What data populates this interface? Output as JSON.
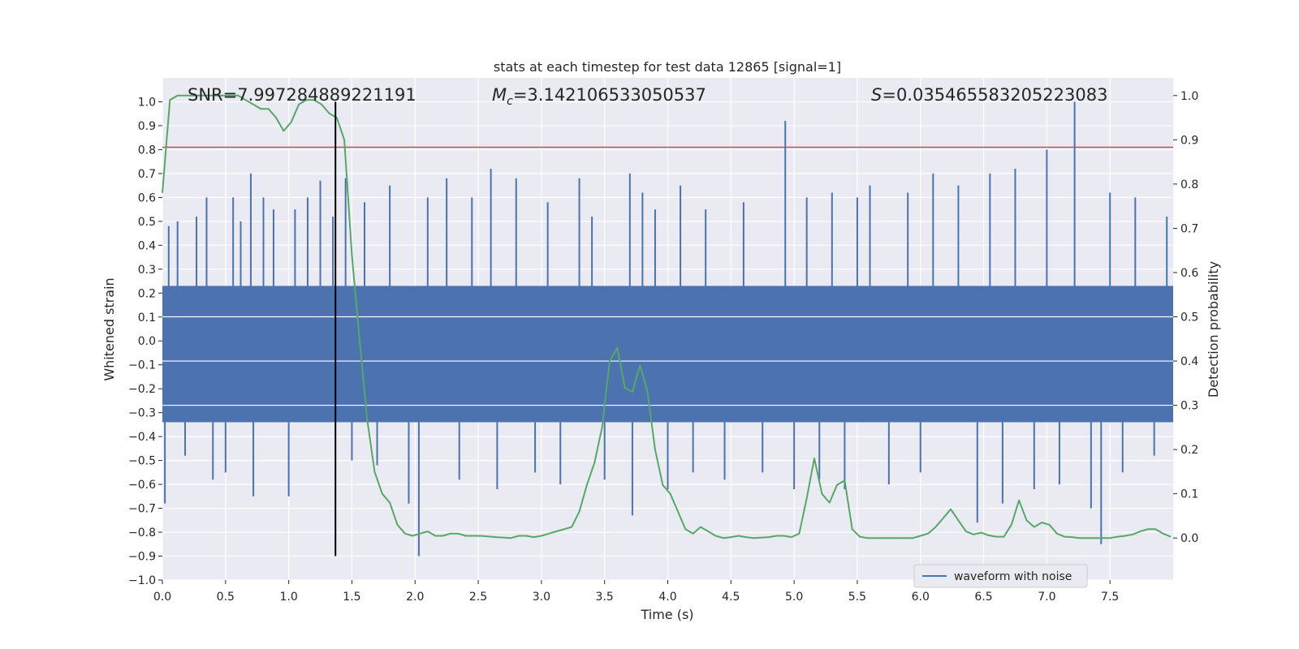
{
  "chart_data": {
    "type": "line",
    "title": "stats at each timestep for test data 12865 [signal=1]",
    "xlabel": "Time (s)",
    "ylabel": "Whitened strain",
    "y2label": "Detection probability",
    "xlim": [
      0,
      8.0
    ],
    "ylim": [
      -1.0,
      1.1
    ],
    "y2lim": [
      -0.095,
      1.04
    ],
    "xticks": [
      0.0,
      0.5,
      1.0,
      1.5,
      2.0,
      2.5,
      3.0,
      3.5,
      4.0,
      4.5,
      5.0,
      5.5,
      6.0,
      6.5,
      7.0,
      7.5
    ],
    "yticks": [
      -1.0,
      -0.9,
      -0.8,
      -0.7,
      -0.6,
      -0.5,
      -0.4,
      -0.3,
      -0.2,
      -0.1,
      0.0,
      0.1,
      0.2,
      0.3,
      0.4,
      0.5,
      0.6,
      0.7,
      0.8,
      0.9,
      1.0
    ],
    "y2ticks": [
      0.0,
      0.1,
      0.2,
      0.3,
      0.4,
      0.5,
      0.6,
      0.7,
      0.8,
      0.9,
      1.0
    ],
    "grid": true,
    "legend": {
      "placement": "bottom-right",
      "entries": [
        "waveform with noise"
      ]
    },
    "annotations": {
      "snr_text": "SNR=7.997284889221191",
      "mc_symbol": "M",
      "mc_subscript": "c",
      "mc_value": "=3.142106533050537",
      "s_symbol": "S",
      "s_value": "=0.035465583205223083"
    },
    "colors": {
      "waveform": "#4c72b0",
      "probability": "#55a868",
      "threshold": "#c44e52",
      "marker": "#000000",
      "background": "#eaeaf2"
    },
    "threshold_y": 0.81,
    "marker_x": 1.37,
    "marker_y_range": [
      -0.9,
      1.0
    ],
    "waveform": {
      "name": "waveform with noise",
      "band": [
        -0.34,
        0.23
      ],
      "spikes": [
        [
          0.02,
          -0.68
        ],
        [
          0.05,
          0.48
        ],
        [
          0.12,
          0.5
        ],
        [
          0.18,
          -0.48
        ],
        [
          0.27,
          0.52
        ],
        [
          0.35,
          0.6
        ],
        [
          0.4,
          -0.58
        ],
        [
          0.5,
          -0.55
        ],
        [
          0.56,
          0.6
        ],
        [
          0.62,
          0.5
        ],
        [
          0.7,
          0.7
        ],
        [
          0.72,
          -0.65
        ],
        [
          0.8,
          0.6
        ],
        [
          0.88,
          0.55
        ],
        [
          1.0,
          -0.65
        ],
        [
          1.05,
          0.55
        ],
        [
          1.15,
          0.6
        ],
        [
          1.25,
          0.67
        ],
        [
          1.35,
          0.52
        ],
        [
          1.45,
          0.68
        ],
        [
          1.5,
          -0.5
        ],
        [
          1.6,
          0.58
        ],
        [
          1.7,
          -0.52
        ],
        [
          1.8,
          0.65
        ],
        [
          1.95,
          -0.68
        ],
        [
          2.03,
          -0.9
        ],
        [
          2.1,
          0.6
        ],
        [
          2.25,
          0.68
        ],
        [
          2.35,
          -0.58
        ],
        [
          2.45,
          0.6
        ],
        [
          2.6,
          0.72
        ],
        [
          2.65,
          -0.62
        ],
        [
          2.8,
          0.68
        ],
        [
          2.95,
          -0.55
        ],
        [
          3.05,
          0.58
        ],
        [
          3.15,
          -0.6
        ],
        [
          3.3,
          0.68
        ],
        [
          3.4,
          0.52
        ],
        [
          3.5,
          -0.58
        ],
        [
          3.7,
          0.7
        ],
        [
          3.72,
          -0.73
        ],
        [
          3.8,
          0.62
        ],
        [
          3.9,
          0.55
        ],
        [
          4.0,
          -0.62
        ],
        [
          4.1,
          0.65
        ],
        [
          4.2,
          -0.55
        ],
        [
          4.3,
          0.55
        ],
        [
          4.45,
          -0.58
        ],
        [
          4.6,
          0.58
        ],
        [
          4.75,
          -0.55
        ],
        [
          4.93,
          0.92
        ],
        [
          5.0,
          -0.62
        ],
        [
          5.1,
          0.6
        ],
        [
          5.2,
          -0.58
        ],
        [
          5.3,
          0.62
        ],
        [
          5.4,
          -0.62
        ],
        [
          5.5,
          0.6
        ],
        [
          5.6,
          0.65
        ],
        [
          5.75,
          -0.6
        ],
        [
          5.9,
          0.62
        ],
        [
          6.0,
          -0.55
        ],
        [
          6.1,
          0.7
        ],
        [
          6.3,
          0.65
        ],
        [
          6.45,
          -0.76
        ],
        [
          6.55,
          0.7
        ],
        [
          6.65,
          -0.68
        ],
        [
          6.75,
          0.72
        ],
        [
          6.9,
          -0.62
        ],
        [
          7.0,
          0.8
        ],
        [
          7.1,
          -0.6
        ],
        [
          7.22,
          1.0
        ],
        [
          7.35,
          -0.7
        ],
        [
          7.43,
          -0.85
        ],
        [
          7.5,
          0.62
        ],
        [
          7.6,
          -0.55
        ],
        [
          7.7,
          0.6
        ],
        [
          7.85,
          -0.48
        ],
        [
          7.95,
          0.52
        ]
      ]
    },
    "probability": {
      "name": "detection probability",
      "x": [
        0.0,
        0.06,
        0.12,
        0.3,
        0.6,
        0.66,
        0.78,
        0.84,
        0.9,
        0.96,
        1.02,
        1.08,
        1.14,
        1.2,
        1.26,
        1.32,
        1.38,
        1.44,
        1.5,
        1.56,
        1.62,
        1.68,
        1.74,
        1.8,
        1.86,
        1.92,
        1.98,
        2.04,
        2.1,
        2.16,
        2.22,
        2.28,
        2.34,
        2.4,
        2.46,
        2.52,
        2.64,
        2.76,
        2.82,
        2.88,
        2.94,
        3.0,
        3.06,
        3.12,
        3.18,
        3.24,
        3.3,
        3.36,
        3.42,
        3.48,
        3.54,
        3.6,
        3.66,
        3.72,
        3.78,
        3.84,
        3.9,
        3.96,
        4.02,
        4.08,
        4.14,
        4.2,
        4.26,
        4.32,
        4.38,
        4.44,
        4.5,
        4.56,
        4.62,
        4.68,
        4.8,
        4.86,
        4.92,
        4.98,
        5.04,
        5.1,
        5.16,
        5.22,
        5.28,
        5.34,
        5.4,
        5.46,
        5.52,
        5.58,
        5.64,
        5.7,
        5.76,
        5.94,
        6.0,
        6.06,
        6.12,
        6.18,
        6.24,
        6.3,
        6.36,
        6.42,
        6.48,
        6.54,
        6.6,
        6.66,
        6.72,
        6.78,
        6.84,
        6.9,
        6.96,
        7.02,
        7.08,
        7.14,
        7.2,
        7.26,
        7.5,
        7.56,
        7.62,
        7.68,
        7.74,
        7.8,
        7.86,
        7.92,
        7.98
      ],
      "y": [
        0.78,
        0.99,
        1.0,
        1.0,
        1.0,
        0.99,
        0.97,
        0.97,
        0.95,
        0.92,
        0.94,
        0.98,
        0.99,
        0.99,
        0.98,
        0.96,
        0.95,
        0.9,
        0.64,
        0.45,
        0.27,
        0.15,
        0.1,
        0.08,
        0.03,
        0.01,
        0.005,
        0.01,
        0.015,
        0.005,
        0.005,
        0.01,
        0.01,
        0.005,
        0.005,
        0.005,
        0.002,
        0.0,
        0.005,
        0.005,
        0.002,
        0.005,
        0.01,
        0.015,
        0.02,
        0.025,
        0.06,
        0.12,
        0.17,
        0.25,
        0.4,
        0.43,
        0.34,
        0.33,
        0.39,
        0.33,
        0.2,
        0.12,
        0.1,
        0.06,
        0.02,
        0.01,
        0.025,
        0.015,
        0.005,
        0.0,
        0.002,
        0.005,
        0.002,
        0.0,
        0.002,
        0.005,
        0.005,
        0.002,
        0.01,
        0.09,
        0.18,
        0.1,
        0.08,
        0.12,
        0.13,
        0.02,
        0.003,
        0.0,
        0.0,
        0.0,
        0.0,
        0.0,
        0.005,
        0.01,
        0.025,
        0.045,
        0.065,
        0.04,
        0.015,
        0.008,
        0.012,
        0.006,
        0.003,
        0.003,
        0.03,
        0.085,
        0.04,
        0.025,
        0.035,
        0.03,
        0.01,
        0.003,
        0.002,
        0.0,
        0.0,
        0.003,
        0.005,
        0.008,
        0.015,
        0.02,
        0.02,
        0.01,
        0.003
      ]
    }
  }
}
